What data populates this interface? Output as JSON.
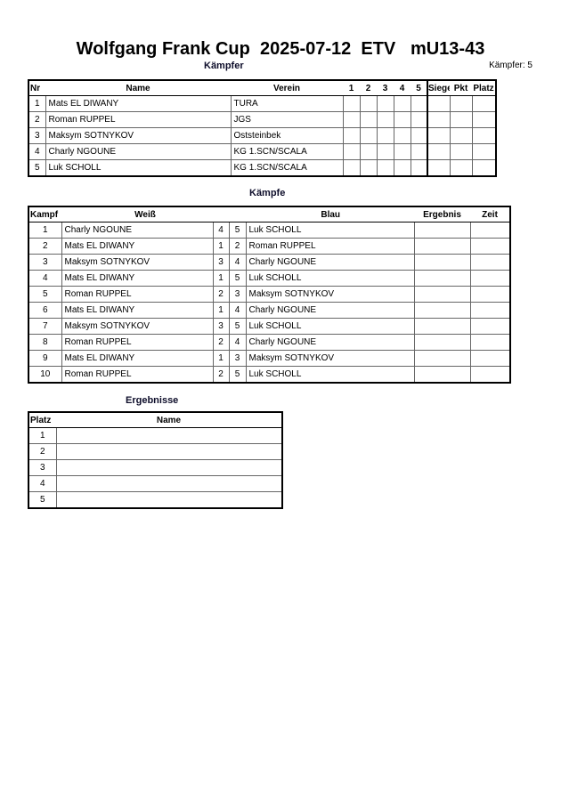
{
  "title": "Wolfgang Frank Cup  2025-07-12  ETV   mU13-43",
  "fighters_section": {
    "heading": "Kämpfer",
    "count_label": "Kämpfer: 5",
    "columns": [
      "Nr",
      "Name",
      "Verein",
      "1",
      "2",
      "3",
      "4",
      "5",
      "Siege",
      "Pkt",
      "Platz"
    ],
    "rows": [
      {
        "nr": "1",
        "name": "Mats EL DIWANY",
        "club": "TURA"
      },
      {
        "nr": "2",
        "name": "Roman RUPPEL",
        "club": "JGS"
      },
      {
        "nr": "3",
        "name": "Maksym SOTNYKOV",
        "club": "Oststeinbek"
      },
      {
        "nr": "4",
        "name": "Charly  NGOUNE",
        "club": "KG 1.SCN/SCALA"
      },
      {
        "nr": "5",
        "name": "Luk SCHOLL",
        "club": "KG 1.SCN/SCALA"
      }
    ]
  },
  "fights_section": {
    "heading": "Kämpfe",
    "columns": [
      "Kampf",
      "Weiß",
      "Blau",
      "Ergebnis",
      "Zeit"
    ],
    "rows": [
      {
        "no": "1",
        "white": "Charly  NGOUNE",
        "wn": "4",
        "bn": "5",
        "blue": "Luk SCHOLL"
      },
      {
        "no": "2",
        "white": "Mats EL DIWANY",
        "wn": "1",
        "bn": "2",
        "blue": "Roman RUPPEL"
      },
      {
        "no": "3",
        "white": "Maksym SOTNYKOV",
        "wn": "3",
        "bn": "4",
        "blue": "Charly  NGOUNE"
      },
      {
        "no": "4",
        "white": "Mats EL DIWANY",
        "wn": "1",
        "bn": "5",
        "blue": "Luk SCHOLL"
      },
      {
        "no": "5",
        "white": "Roman RUPPEL",
        "wn": "2",
        "bn": "3",
        "blue": "Maksym SOTNYKOV"
      },
      {
        "no": "6",
        "white": "Mats EL DIWANY",
        "wn": "1",
        "bn": "4",
        "blue": "Charly  NGOUNE"
      },
      {
        "no": "7",
        "white": "Maksym SOTNYKOV",
        "wn": "3",
        "bn": "5",
        "blue": "Luk SCHOLL"
      },
      {
        "no": "8",
        "white": "Roman RUPPEL",
        "wn": "2",
        "bn": "4",
        "blue": "Charly  NGOUNE"
      },
      {
        "no": "9",
        "white": "Mats EL DIWANY",
        "wn": "1",
        "bn": "3",
        "blue": "Maksym SOTNYKOV"
      },
      {
        "no": "10",
        "white": "Roman RUPPEL",
        "wn": "2",
        "bn": "5",
        "blue": "Luk SCHOLL"
      }
    ]
  },
  "results_section": {
    "heading": "Ergebnisse",
    "columns": [
      "Platz",
      "Name"
    ],
    "rows": [
      {
        "place": "1"
      },
      {
        "place": "2"
      },
      {
        "place": "3"
      },
      {
        "place": "4"
      },
      {
        "place": "5"
      }
    ]
  }
}
